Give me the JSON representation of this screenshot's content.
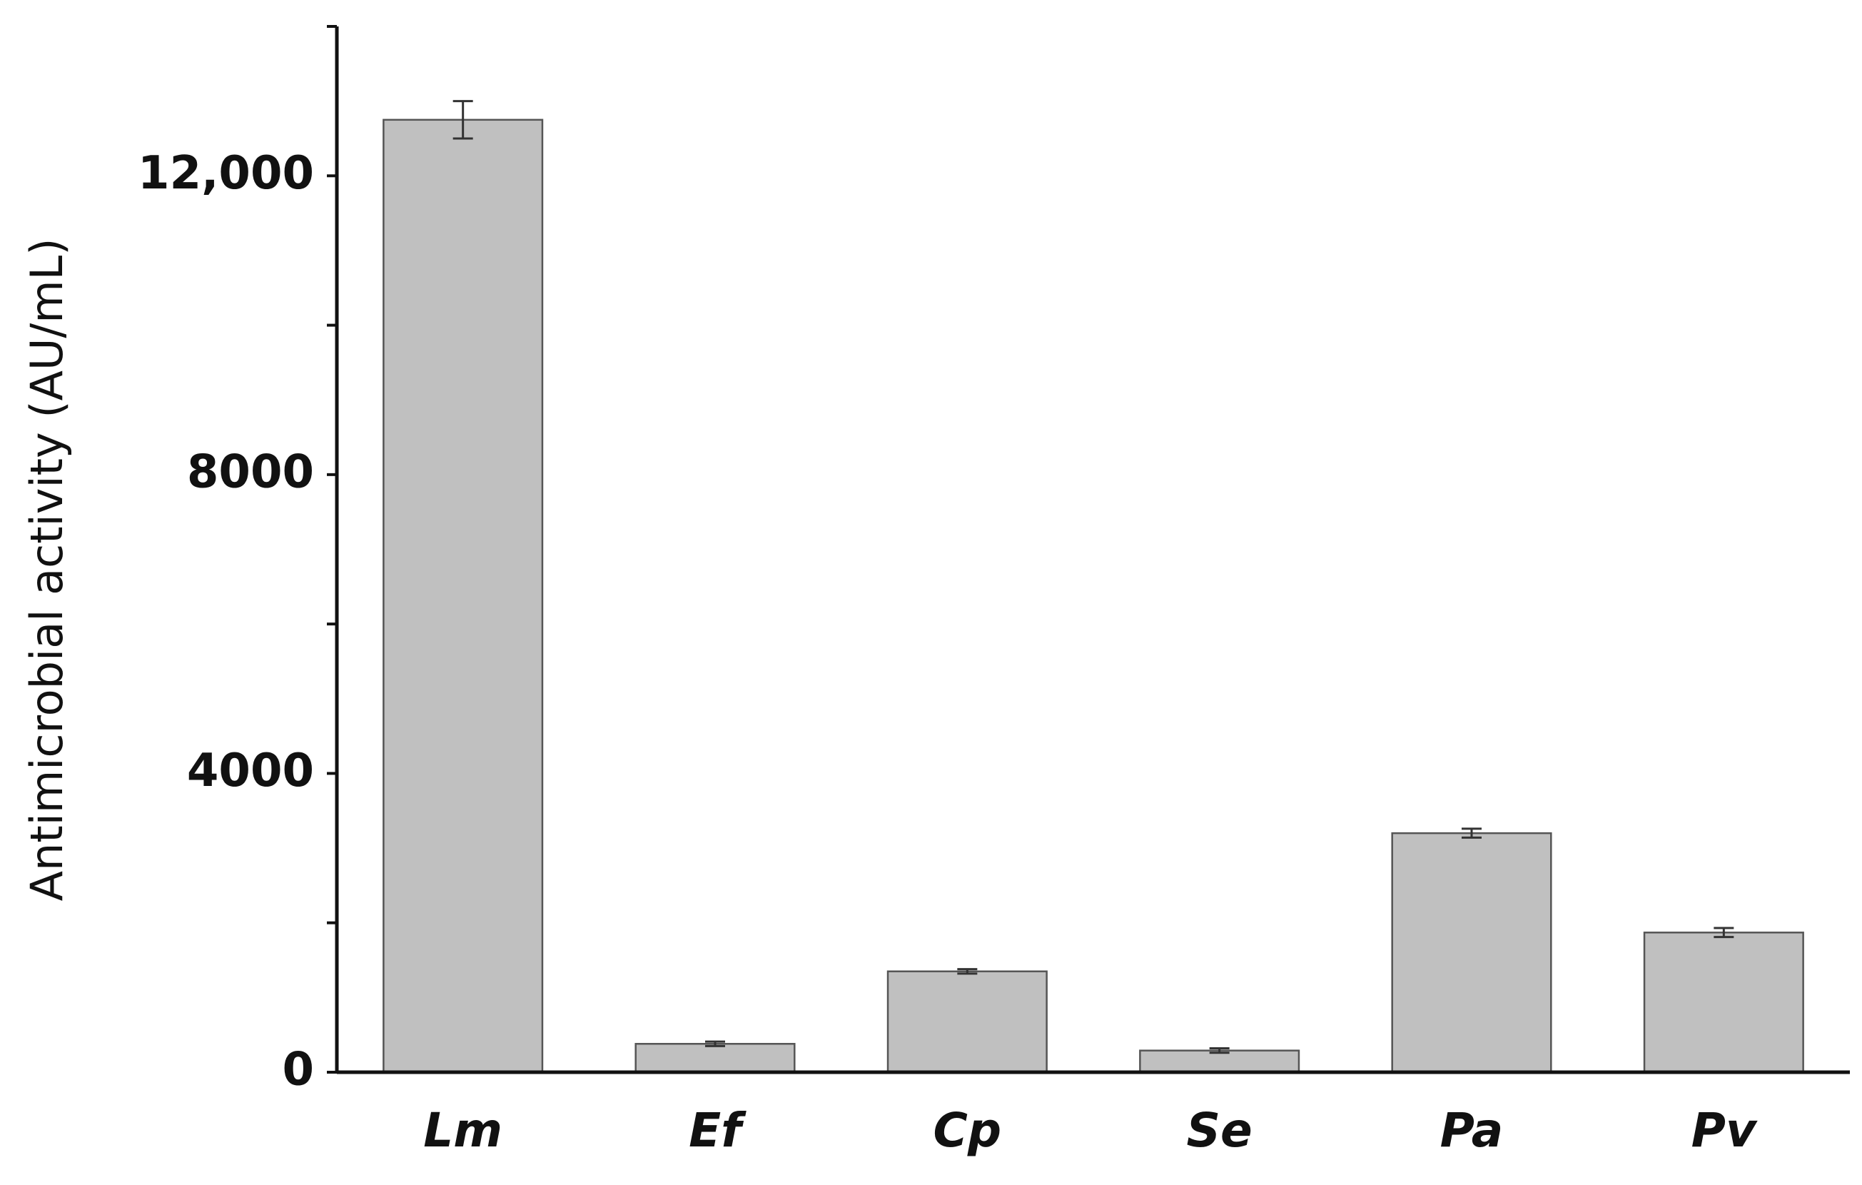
{
  "chart_data": {
    "type": "bar",
    "y_label": "Antimicrobial activity (AU/mL)",
    "categories": [
      "Lm",
      "Ef",
      "Cp",
      "Se",
      "Pa",
      "Pv"
    ],
    "values": [
      12750,
      380,
      1350,
      290,
      3200,
      1870
    ],
    "errors": [
      250,
      30,
      30,
      30,
      60,
      60
    ],
    "color": "#c0c0c0",
    "ylim": [
      0,
      14000
    ],
    "yticks": [
      0,
      4000,
      8000,
      {
        "value": 12000,
        "label": "12,000"
      }
    ],
    "minor_yticks": [
      2000,
      6000,
      10000,
      14000
    ],
    "grid": false
  }
}
